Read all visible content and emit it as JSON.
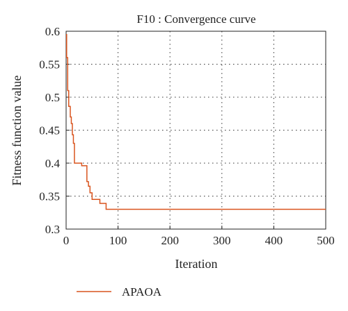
{
  "chart_data": {
    "type": "line",
    "title": "F10 : Convergence curve",
    "xlabel": "Iteration",
    "ylabel": "Fitness function value",
    "xlim": [
      0,
      500
    ],
    "ylim": [
      0.3,
      0.6
    ],
    "xticks": [
      0,
      100,
      200,
      300,
      400,
      500
    ],
    "yticks": [
      0.3,
      0.35,
      0.4,
      0.45,
      0.5,
      0.55,
      0.6
    ],
    "xtick_labels": [
      "0",
      "100",
      "200",
      "300",
      "400",
      "500"
    ],
    "ytick_labels": [
      "0.3",
      "0.35",
      "0.4",
      "0.45",
      "0.5",
      "0.55",
      "0.6"
    ],
    "grid": true,
    "legend_position": "bottom-left",
    "series": [
      {
        "name": "APAOA",
        "color": "#d9541e",
        "step": true,
        "points": [
          [
            0,
            0.595
          ],
          [
            1,
            0.56
          ],
          [
            3,
            0.51
          ],
          [
            5,
            0.486
          ],
          [
            8,
            0.47
          ],
          [
            10,
            0.46
          ],
          [
            12,
            0.443
          ],
          [
            14,
            0.43
          ],
          [
            16,
            0.4
          ],
          [
            30,
            0.396
          ],
          [
            40,
            0.372
          ],
          [
            43,
            0.365
          ],
          [
            46,
            0.355
          ],
          [
            50,
            0.345
          ],
          [
            65,
            0.339
          ],
          [
            77,
            0.33
          ],
          [
            500,
            0.33
          ]
        ]
      }
    ]
  }
}
